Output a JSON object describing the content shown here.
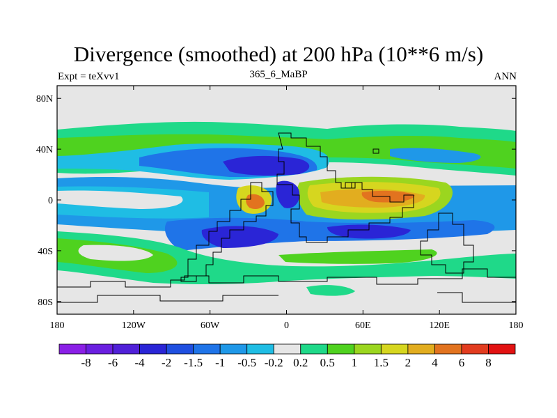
{
  "title": "Divergence (smoothed) at 200 hPa (10**6 m/s)",
  "subtitle_left": "Expt = teXvv1",
  "subtitle_center": "365_6_MaBP",
  "subtitle_right": "ANN",
  "lat_ticks": [
    {
      "lat": 80,
      "label": "80N"
    },
    {
      "lat": 40,
      "label": "40N"
    },
    {
      "lat": 0,
      "label": "0"
    },
    {
      "lat": -40,
      "label": "40S"
    },
    {
      "lat": -80,
      "label": "80S"
    }
  ],
  "lon_ticks": [
    {
      "lon": -180,
      "label": "180"
    },
    {
      "lon": -120,
      "label": "120W"
    },
    {
      "lon": -60,
      "label": "60W"
    },
    {
      "lon": 0,
      "label": "0"
    },
    {
      "lon": 60,
      "label": "60E"
    },
    {
      "lon": 120,
      "label": "120E"
    },
    {
      "lon": 180,
      "label": "180"
    }
  ],
  "colorbar": {
    "colors": [
      "#8a1fe6",
      "#6a1fe0",
      "#5020d8",
      "#2a25d6",
      "#1f4fe0",
      "#1f74e8",
      "#1f98e8",
      "#1fbde4",
      "#e6e6e6",
      "#1fd989",
      "#4fd21f",
      "#9bd61f",
      "#d6d61f",
      "#e2ad1f",
      "#e2731f",
      "#e23c1f",
      "#e21212"
    ],
    "labels": [
      "-8",
      "-6",
      "-4",
      "-2",
      "-1.5",
      "-1",
      "-0.5",
      "-0.2",
      "0.2",
      "0.5",
      "1",
      "1.5",
      "2",
      "4",
      "6",
      "8"
    ]
  },
  "colors": {
    "land_fill": "#e6e6e6",
    "coast_line": "#000000"
  }
}
